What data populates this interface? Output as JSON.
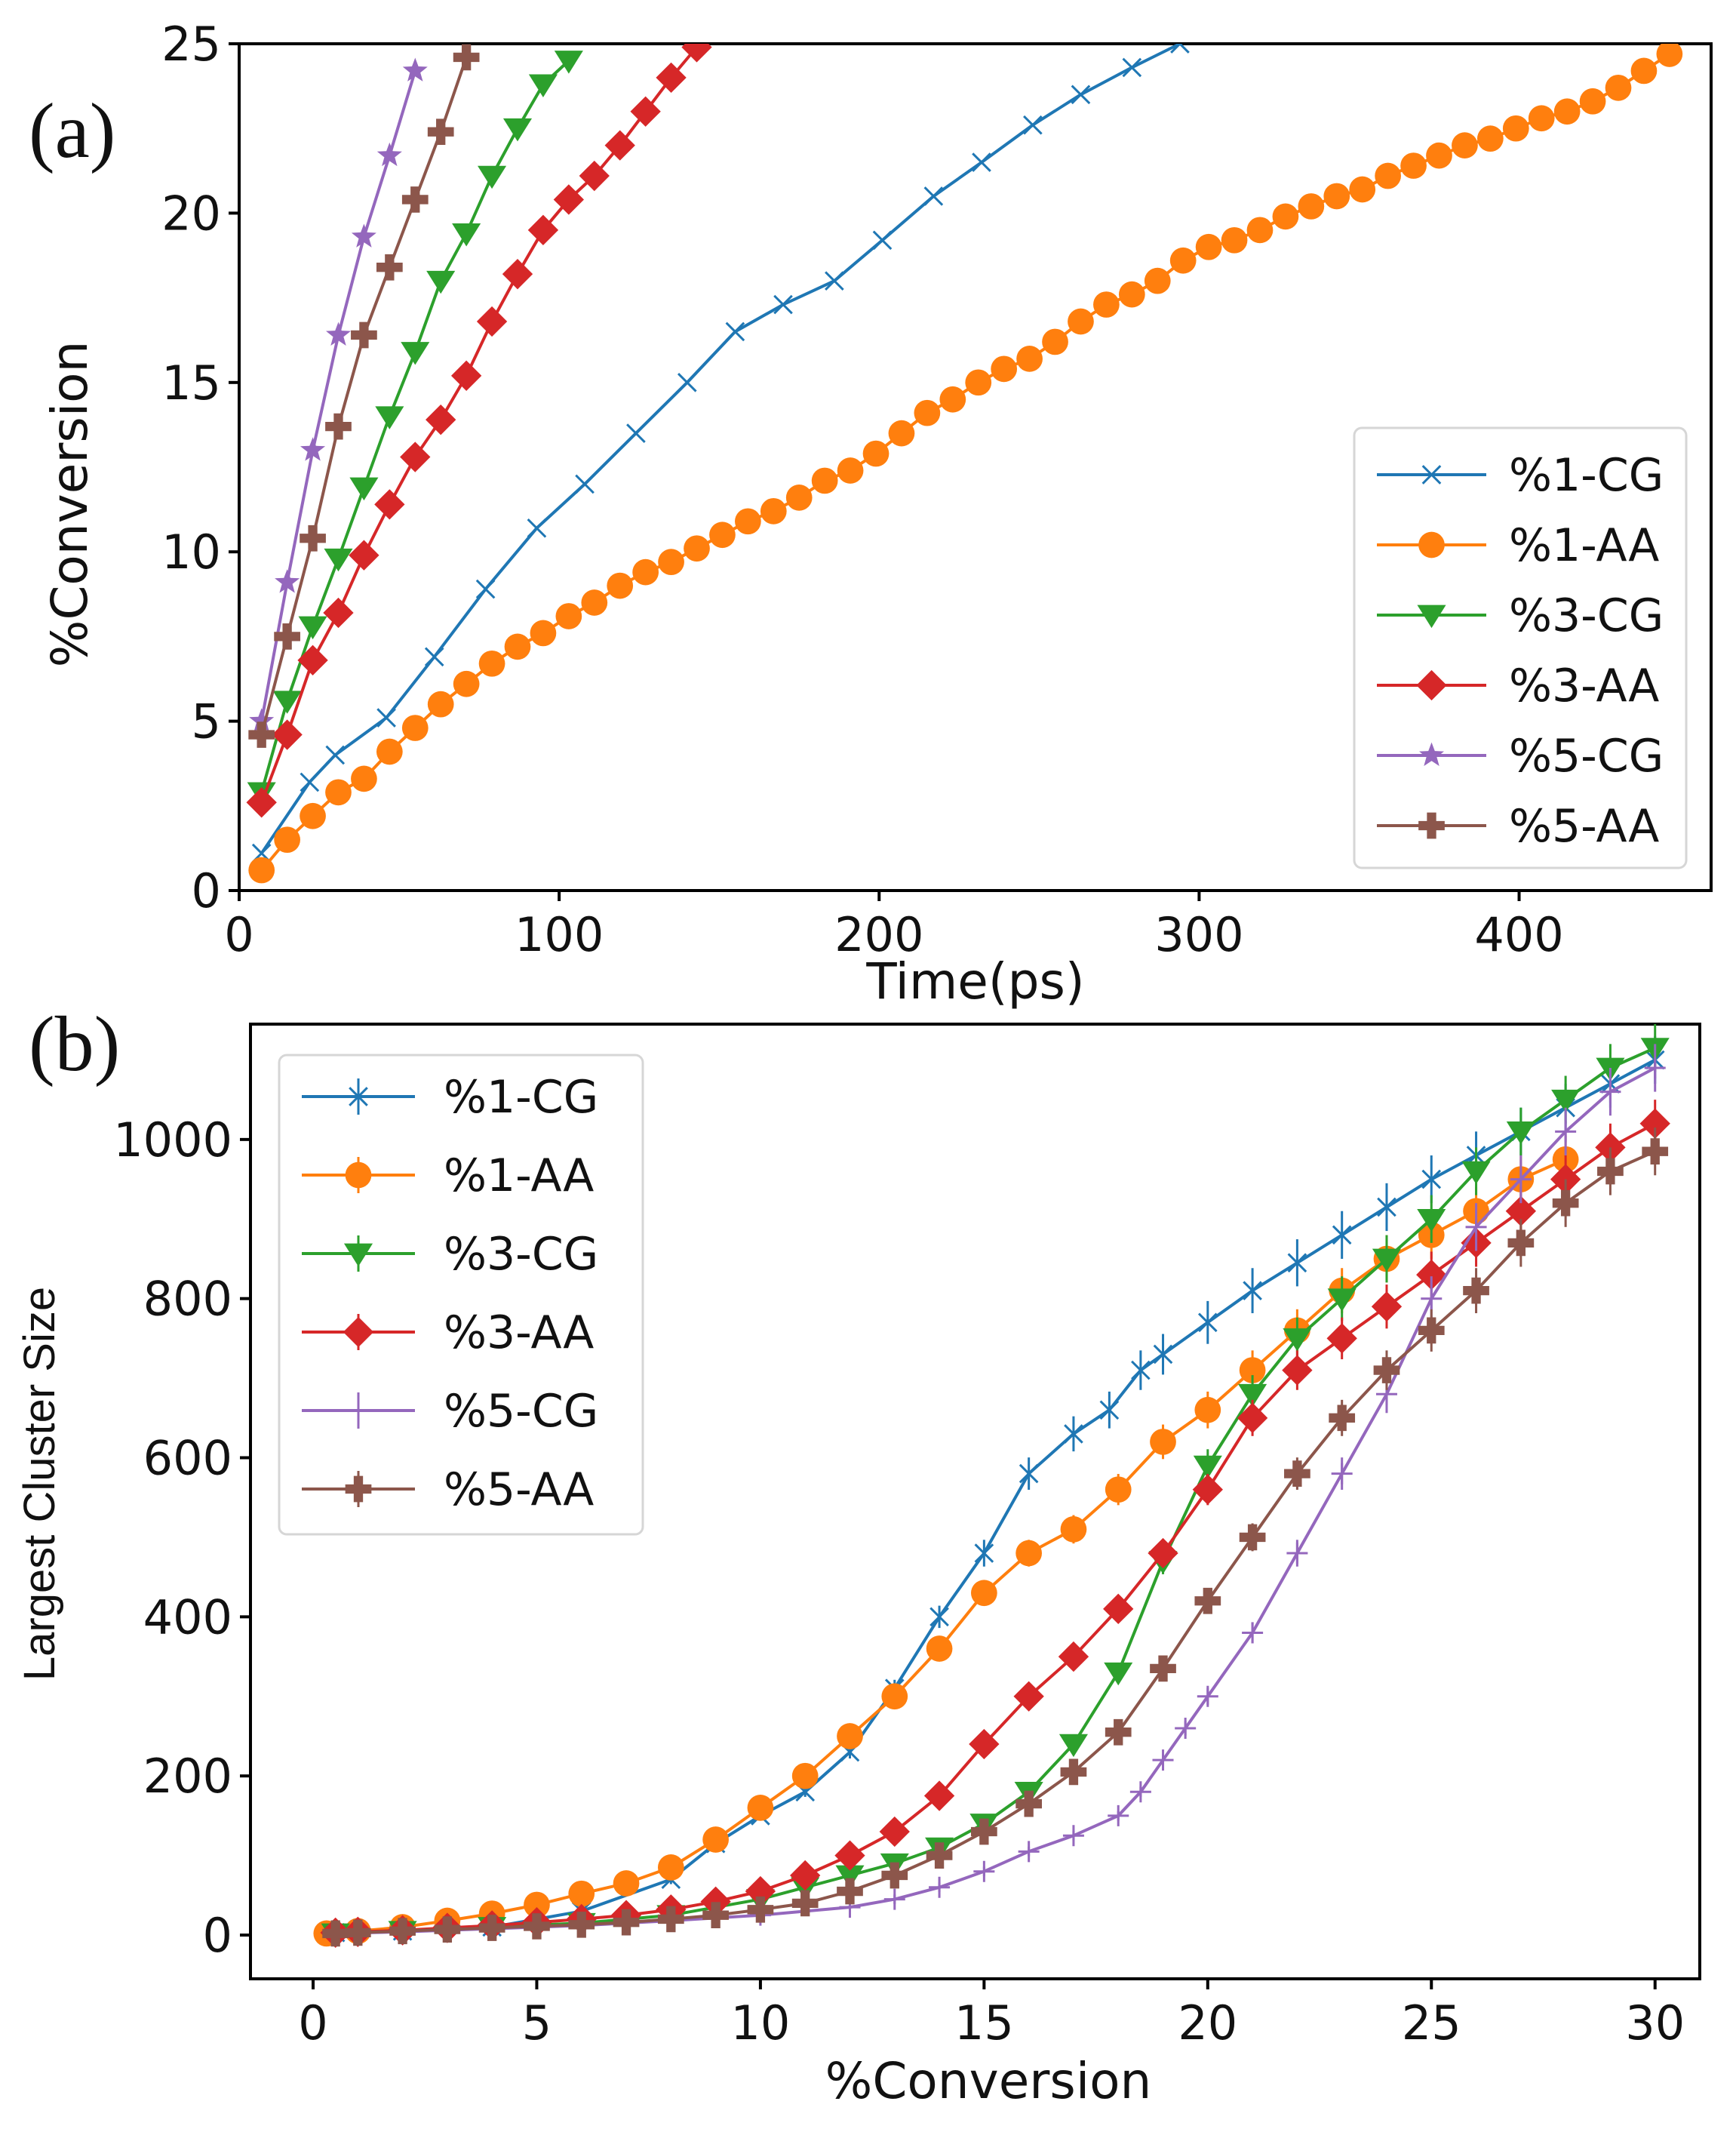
{
  "chart_data": [
    {
      "type": "line",
      "panel_label": "(a)",
      "xlabel": "Time(ps)",
      "ylabel": "%Conversion",
      "xlim": [
        0,
        460
      ],
      "ylim": [
        0,
        25
      ],
      "xticks": [
        "0",
        "100",
        "200",
        "300",
        "400"
      ],
      "yticks": [
        "0",
        "5",
        "10",
        "15",
        "20",
        "25"
      ],
      "legend_position": "lower-right",
      "series": [
        {
          "name": "%1-CG",
          "color": "#1f77b4",
          "marker": "x",
          "label": "%1-CG",
          "x": [
            7,
            22,
            30,
            46,
            61,
            77,
            93,
            108,
            124,
            140,
            155,
            170,
            186,
            201,
            217,
            232,
            248,
            263,
            279,
            294
          ],
          "y": [
            1.1,
            3.2,
            4.0,
            5.1,
            6.9,
            8.9,
            10.7,
            12.0,
            13.5,
            15.0,
            16.5,
            17.3,
            18.0,
            19.2,
            20.5,
            21.5,
            22.6,
            23.5,
            24.3,
            25.0
          ]
        },
        {
          "name": "%1-AA",
          "color": "#ff7f0e",
          "marker": "o",
          "label": "%1-AA",
          "x": [
            7,
            15,
            23,
            31,
            39,
            47,
            55,
            63,
            71,
            79,
            87,
            95,
            103,
            111,
            119,
            127,
            135,
            143,
            151,
            159,
            167,
            175,
            183,
            191,
            199,
            207,
            215,
            223,
            231,
            239,
            247,
            255,
            263,
            271,
            279,
            287,
            295,
            303,
            311,
            319,
            327,
            335,
            343,
            351,
            359,
            367,
            375,
            383,
            391,
            399,
            407,
            415,
            423,
            431,
            439,
            447
          ],
          "y": [
            0.6,
            1.5,
            2.2,
            2.9,
            3.3,
            4.1,
            4.8,
            5.5,
            6.1,
            6.7,
            7.2,
            7.6,
            8.1,
            8.5,
            9.0,
            9.4,
            9.7,
            10.1,
            10.5,
            10.9,
            11.2,
            11.6,
            12.1,
            12.4,
            12.9,
            13.5,
            14.1,
            14.5,
            15.0,
            15.4,
            15.7,
            16.2,
            16.8,
            17.3,
            17.6,
            18.0,
            18.6,
            19.0,
            19.2,
            19.5,
            19.9,
            20.2,
            20.5,
            20.7,
            21.1,
            21.4,
            21.7,
            22.0,
            22.2,
            22.5,
            22.8,
            23.0,
            23.3,
            23.7,
            24.2,
            24.7
          ]
        },
        {
          "name": "%3-CG",
          "color": "#2ca02c",
          "marker": "v",
          "label": "%3-CG",
          "x": [
            7,
            15,
            23,
            31,
            39,
            47,
            55,
            63,
            71,
            79,
            87,
            95,
            103
          ],
          "y": [
            2.9,
            5.6,
            7.8,
            9.8,
            11.9,
            14.0,
            15.9,
            18.0,
            19.4,
            21.1,
            22.5,
            23.8,
            24.5
          ]
        },
        {
          "name": "%3-AA",
          "color": "#d62728",
          "marker": "D",
          "label": "%3-AA",
          "x": [
            7,
            15,
            23,
            31,
            39,
            47,
            55,
            63,
            71,
            79,
            87,
            95,
            103,
            111,
            119,
            127,
            135,
            143
          ],
          "y": [
            2.6,
            4.6,
            6.8,
            8.2,
            9.9,
            11.4,
            12.8,
            13.9,
            15.2,
            16.8,
            18.2,
            19.5,
            20.4,
            21.1,
            22.0,
            23.0,
            24.0,
            24.9
          ]
        },
        {
          "name": "%5-CG",
          "color": "#9467bd",
          "marker": "*",
          "label": "%5-CG",
          "x": [
            7,
            15,
            23,
            31,
            39,
            47,
            55
          ],
          "y": [
            5.0,
            9.1,
            13.0,
            16.4,
            19.3,
            21.7,
            24.2
          ]
        },
        {
          "name": "%5-AA",
          "color": "#8c564b",
          "marker": "P",
          "label": "%5-AA",
          "x": [
            7,
            15,
            23,
            31,
            39,
            47,
            55,
            63,
            71
          ],
          "y": [
            4.6,
            7.5,
            10.4,
            13.7,
            16.4,
            18.4,
            20.4,
            22.4,
            24.6
          ]
        }
      ]
    },
    {
      "type": "line",
      "panel_label": "(b)",
      "xlabel": "%Conversion",
      "ylabel": "Largest Cluster Size",
      "xlim": [
        -1.4,
        31.0
      ],
      "ylim": [
        -55,
        1145
      ],
      "xticks": [
        "0",
        "5",
        "10",
        "15",
        "20",
        "25",
        "30"
      ],
      "yticks": [
        "0",
        "200",
        "400",
        "600",
        "800",
        "1000"
      ],
      "legend_position": "upper-left",
      "error_bars": true,
      "series": [
        {
          "name": "%1-CG",
          "color": "#1f77b4",
          "marker": "x",
          "label": "%1-CG",
          "x": [
            0.5,
            2,
            4,
            6,
            8,
            9,
            10,
            11,
            12,
            13,
            14,
            15,
            16,
            17,
            17.8,
            18.5,
            19,
            20,
            21,
            22,
            23,
            24,
            25,
            26,
            27,
            28,
            29,
            30
          ],
          "y": [
            3,
            5,
            10,
            30,
            70,
            115,
            150,
            180,
            230,
            310,
            400,
            480,
            580,
            630,
            660,
            710,
            730,
            770,
            810,
            845,
            880,
            915,
            950,
            980,
            1010,
            1040,
            1070,
            1100
          ]
        },
        {
          "name": "%1-AA",
          "color": "#ff7f0e",
          "marker": "o",
          "label": "%1-AA",
          "x": [
            0.3,
            1,
            2,
            3,
            4,
            5,
            6,
            7,
            8,
            9,
            10,
            11,
            12,
            13,
            14,
            15,
            16,
            17,
            18,
            19,
            20,
            21,
            22,
            23,
            24,
            25,
            26,
            27,
            28
          ],
          "y": [
            2,
            5,
            10,
            18,
            27,
            38,
            52,
            65,
            85,
            120,
            160,
            200,
            250,
            300,
            360,
            430,
            480,
            510,
            560,
            620,
            660,
            710,
            760,
            810,
            850,
            880,
            910,
            950,
            975
          ]
        },
        {
          "name": "%3-CG",
          "color": "#2ca02c",
          "marker": "v",
          "label": "%3-CG",
          "x": [
            0.5,
            2,
            4,
            6,
            8,
            10,
            11,
            12,
            13,
            14,
            15,
            16,
            17,
            18,
            19,
            20,
            21,
            22,
            23,
            24,
            25,
            26,
            27,
            28,
            29,
            30
          ],
          "y": [
            2,
            5,
            10,
            15,
            25,
            45,
            60,
            75,
            90,
            110,
            140,
            180,
            240,
            330,
            470,
            590,
            680,
            750,
            800,
            850,
            900,
            960,
            1010,
            1050,
            1090,
            1115
          ]
        },
        {
          "name": "%3-AA",
          "color": "#d62728",
          "marker": "D",
          "label": "%3-AA",
          "x": [
            0.5,
            1,
            2,
            3,
            4,
            5,
            6,
            7,
            8,
            9,
            10,
            11,
            12,
            13,
            14,
            15,
            16,
            17,
            18,
            19,
            20,
            21,
            22,
            23,
            24,
            25,
            26,
            27,
            28,
            29,
            30
          ],
          "y": [
            3,
            4,
            6,
            9,
            12,
            16,
            20,
            25,
            32,
            42,
            55,
            75,
            100,
            130,
            175,
            240,
            300,
            350,
            410,
            480,
            560,
            650,
            710,
            750,
            790,
            830,
            870,
            910,
            950,
            990,
            1020
          ]
        },
        {
          "name": "%5-CG",
          "color": "#9467bd",
          "marker": "+",
          "label": "%5-CG",
          "x": [
            0.5,
            2,
            4,
            6,
            8,
            10,
            12,
            13,
            14,
            15,
            16,
            17,
            18,
            18.5,
            19,
            19.5,
            20,
            21,
            22,
            23,
            24,
            25,
            26,
            27,
            28,
            29,
            30
          ],
          "y": [
            2,
            4,
            8,
            12,
            18,
            25,
            35,
            45,
            60,
            80,
            105,
            125,
            150,
            180,
            220,
            260,
            300,
            380,
            480,
            580,
            680,
            800,
            890,
            950,
            1010,
            1060,
            1090
          ]
        },
        {
          "name": "%5-AA",
          "color": "#8c564b",
          "marker": "P",
          "label": "%5-AA",
          "x": [
            0.5,
            1,
            2,
            3,
            4,
            5,
            6,
            7,
            8,
            9,
            10,
            11,
            12,
            13,
            14,
            15,
            16,
            17,
            18,
            19,
            20,
            21,
            22,
            23,
            24,
            25,
            26,
            27,
            28,
            29,
            30
          ],
          "y": [
            2,
            3,
            5,
            7,
            9,
            11,
            13,
            16,
            20,
            25,
            32,
            40,
            55,
            75,
            100,
            130,
            165,
            205,
            255,
            335,
            420,
            500,
            580,
            650,
            710,
            760,
            810,
            870,
            920,
            960,
            985
          ]
        }
      ]
    }
  ]
}
